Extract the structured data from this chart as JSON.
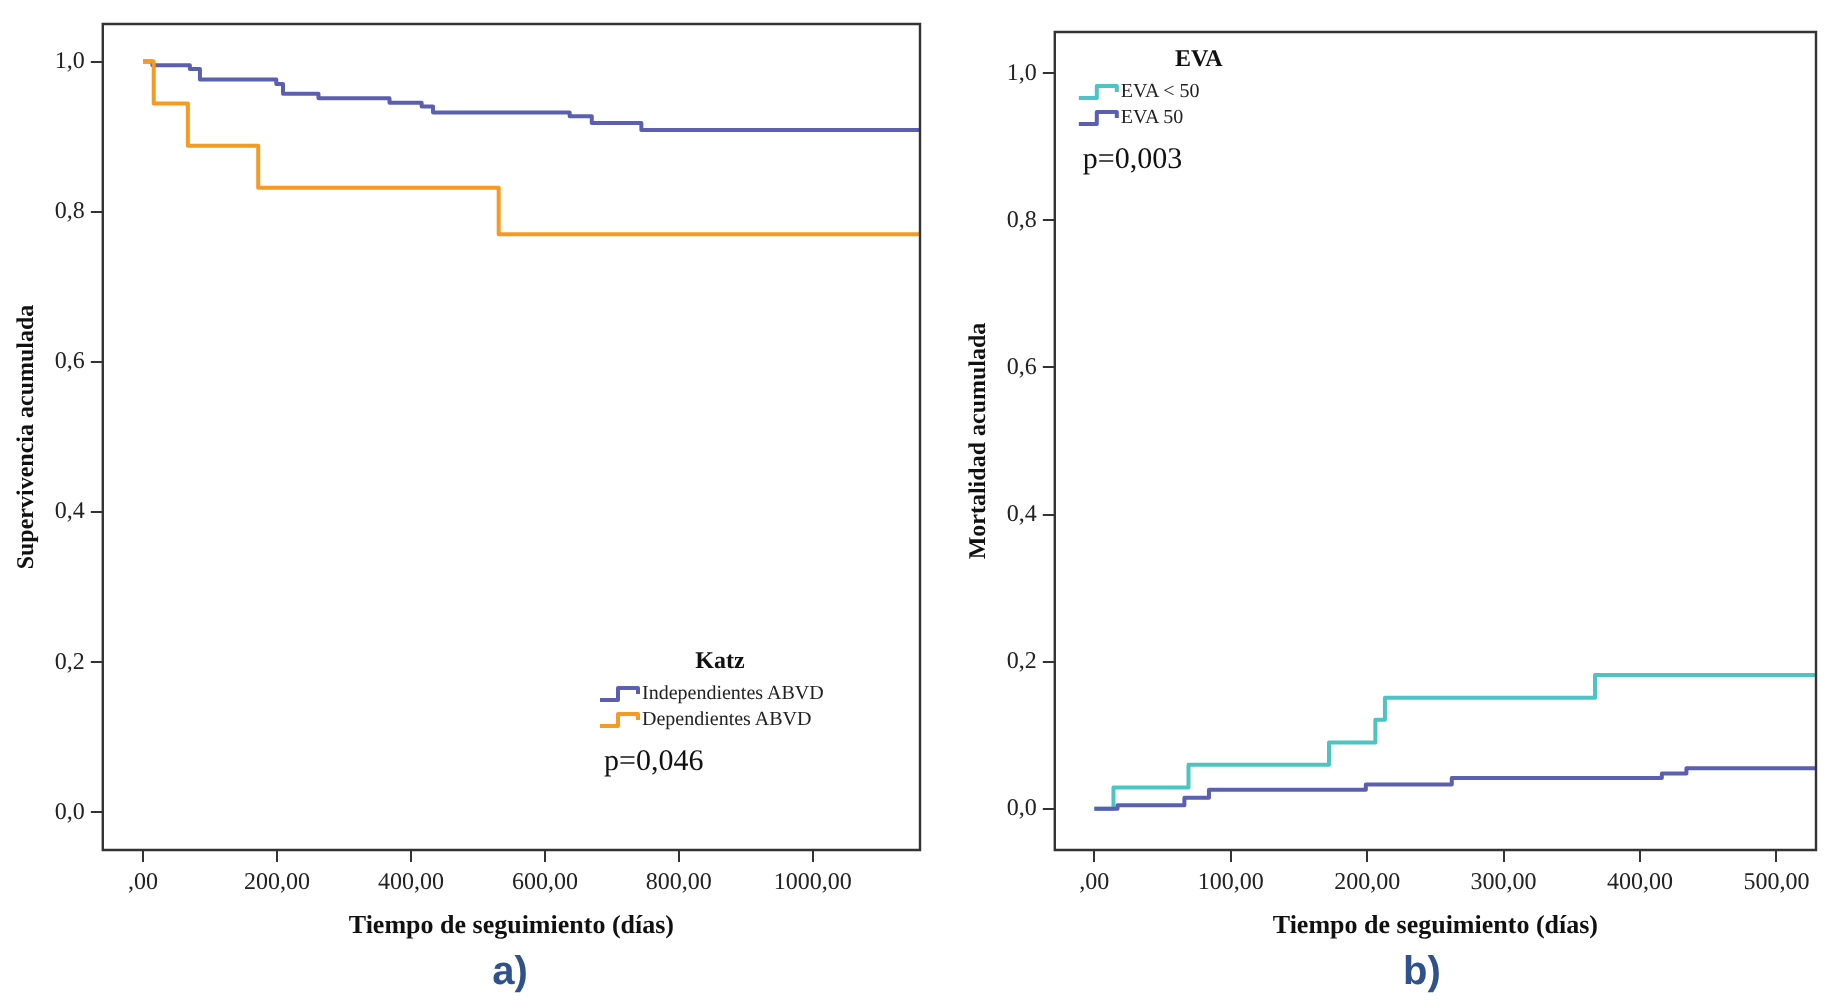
{
  "chart_data": [
    {
      "type": "step",
      "xlabel": "Tiempo de seguimiento (días)",
      "ylabel": "Supervivencia acumulada",
      "legend_title": "Katz",
      "legend": "bottom right",
      "grid": false,
      "xlim": [
        -60,
        1160
      ],
      "xticks": [
        {
          "value": 0,
          "label": ",00"
        },
        {
          "value": 200,
          "label": "200,00"
        },
        {
          "value": 400,
          "label": "400,00"
        },
        {
          "value": 600,
          "label": "600,00"
        },
        {
          "value": 800,
          "label": "800,00"
        },
        {
          "value": 1000,
          "label": "1000,00"
        }
      ],
      "ylim": [
        -0.05,
        1.05
      ],
      "yticks": [
        {
          "value": 0,
          "label": "0,0"
        },
        {
          "value": 0.2,
          "label": "0,2"
        },
        {
          "value": 0.4,
          "label": "0,4"
        },
        {
          "value": 0.6,
          "label": "0,6"
        },
        {
          "value": 0.8,
          "label": "0,8"
        },
        {
          "value": 1,
          "label": "1,0"
        }
      ],
      "series": [
        {
          "name": "Independientes ABVD",
          "color": "#5a5fb0",
          "x": [
            0,
            14,
            70,
            85,
            199,
            209,
            262,
            368,
            416,
            433,
            637,
            670,
            744,
            1160
          ],
          "values": [
            1.0,
            0.995,
            0.99,
            0.976,
            0.97,
            0.957,
            0.951,
            0.945,
            0.94,
            0.932,
            0.927,
            0.918,
            0.909,
            0.909
          ]
        },
        {
          "name": "Dependientes ABVD",
          "color": "#f59a23",
          "x": [
            0,
            16,
            67,
            172,
            531,
            1160
          ],
          "values": [
            1.0,
            0.944,
            0.888,
            0.832,
            0.77,
            0.77
          ]
        }
      ],
      "annotations": [
        "p=0,046",
        "a)"
      ]
    },
    {
      "type": "step",
      "xlabel": "Tiempo de seguimiento (días)",
      "ylabel": "Mortalidad acumulada",
      "legend_title": "EVA",
      "legend": "top left",
      "grid": false,
      "xlim": [
        -29,
        529
      ],
      "xticks": [
        {
          "value": 0,
          "label": ",00"
        },
        {
          "value": 100,
          "label": "100,00"
        },
        {
          "value": 200,
          "label": "200,00"
        },
        {
          "value": 300,
          "label": "300,00"
        },
        {
          "value": 400,
          "label": "400,00"
        },
        {
          "value": 500,
          "label": "500,00"
        }
      ],
      "ylim": [
        -0.056,
        1.056
      ],
      "yticks": [
        {
          "value": 0,
          "label": "0,0"
        },
        {
          "value": 0.2,
          "label": "0,2"
        },
        {
          "value": 0.4,
          "label": "0,4"
        },
        {
          "value": 0.6,
          "label": "0,6"
        },
        {
          "value": 0.8,
          "label": "0,8"
        },
        {
          "value": 1,
          "label": "1,0"
        }
      ],
      "series": [
        {
          "name": "EVA < 50",
          "color": "#4cc4c4",
          "x": [
            0,
            14,
            69,
            172,
            206,
            213,
            367,
            529
          ],
          "values": [
            0,
            0.029,
            0.06,
            0.09,
            0.121,
            0.151,
            0.182,
            0.182
          ]
        },
        {
          "name": "EVA 50",
          "color": "#5a5fb0",
          "x": [
            0,
            17,
            66,
            84,
            199,
            262,
            416,
            434,
            529
          ],
          "values": [
            0,
            0.005,
            0.015,
            0.026,
            0.033,
            0.042,
            0.048,
            0.055,
            0.055
          ]
        }
      ],
      "annotations": [
        "p=0,003",
        "b)"
      ]
    }
  ]
}
